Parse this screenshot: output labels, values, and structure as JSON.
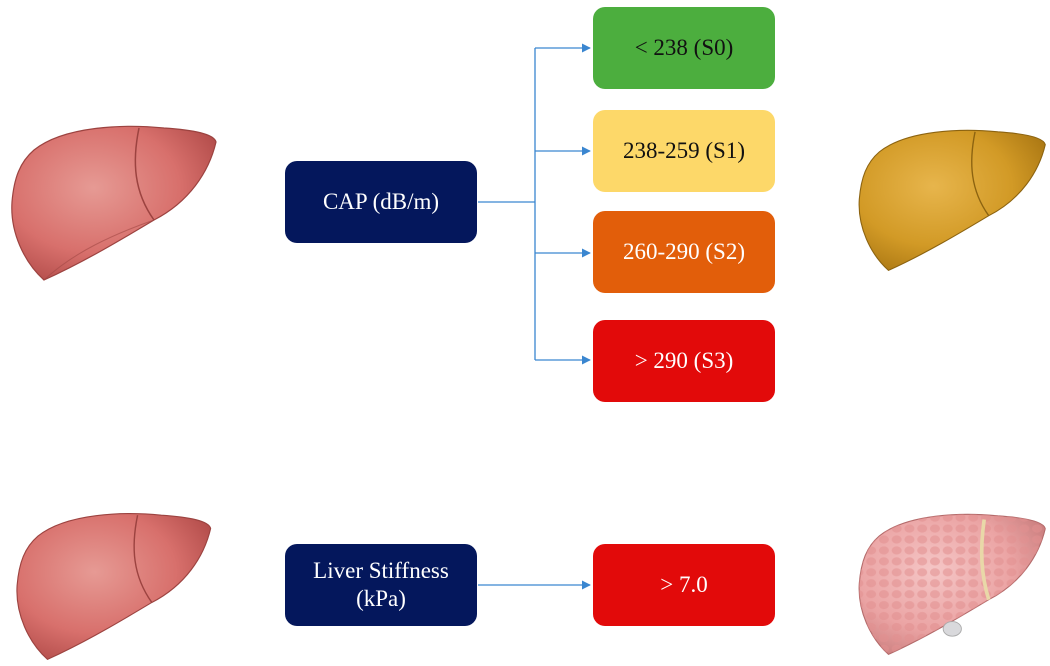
{
  "cap": {
    "label": "CAP (dB/m)",
    "categories": [
      {
        "label": "< 238 (S0)",
        "color": "#4cae3e",
        "text_color": "#111111"
      },
      {
        "label": "238-259 (S1)",
        "color": "#fdd869",
        "text_color": "#111111"
      },
      {
        "label": "260-290 (S2)",
        "color": "#e25e0a",
        "text_color": "#ffffff"
      },
      {
        "label": "> 290 (S3)",
        "color": "#e20a0a",
        "text_color": "#ffffff"
      }
    ]
  },
  "stiffness": {
    "label_line1": "Liver Stiffness",
    "label_line2": "(kPa)",
    "result": {
      "label": "> 7.0",
      "color": "#e20a0a",
      "text_color": "#ffffff"
    }
  },
  "colors": {
    "source_box": "#04175c",
    "arrow": "#3a86d0",
    "healthy_liver": "#d8706c",
    "fatty_liver": "#d29a26",
    "fibrotic_liver": "#eba4a4"
  },
  "icons": [
    "healthy-liver-icon",
    "fatty-liver-icon",
    "fibrotic-liver-icon"
  ]
}
